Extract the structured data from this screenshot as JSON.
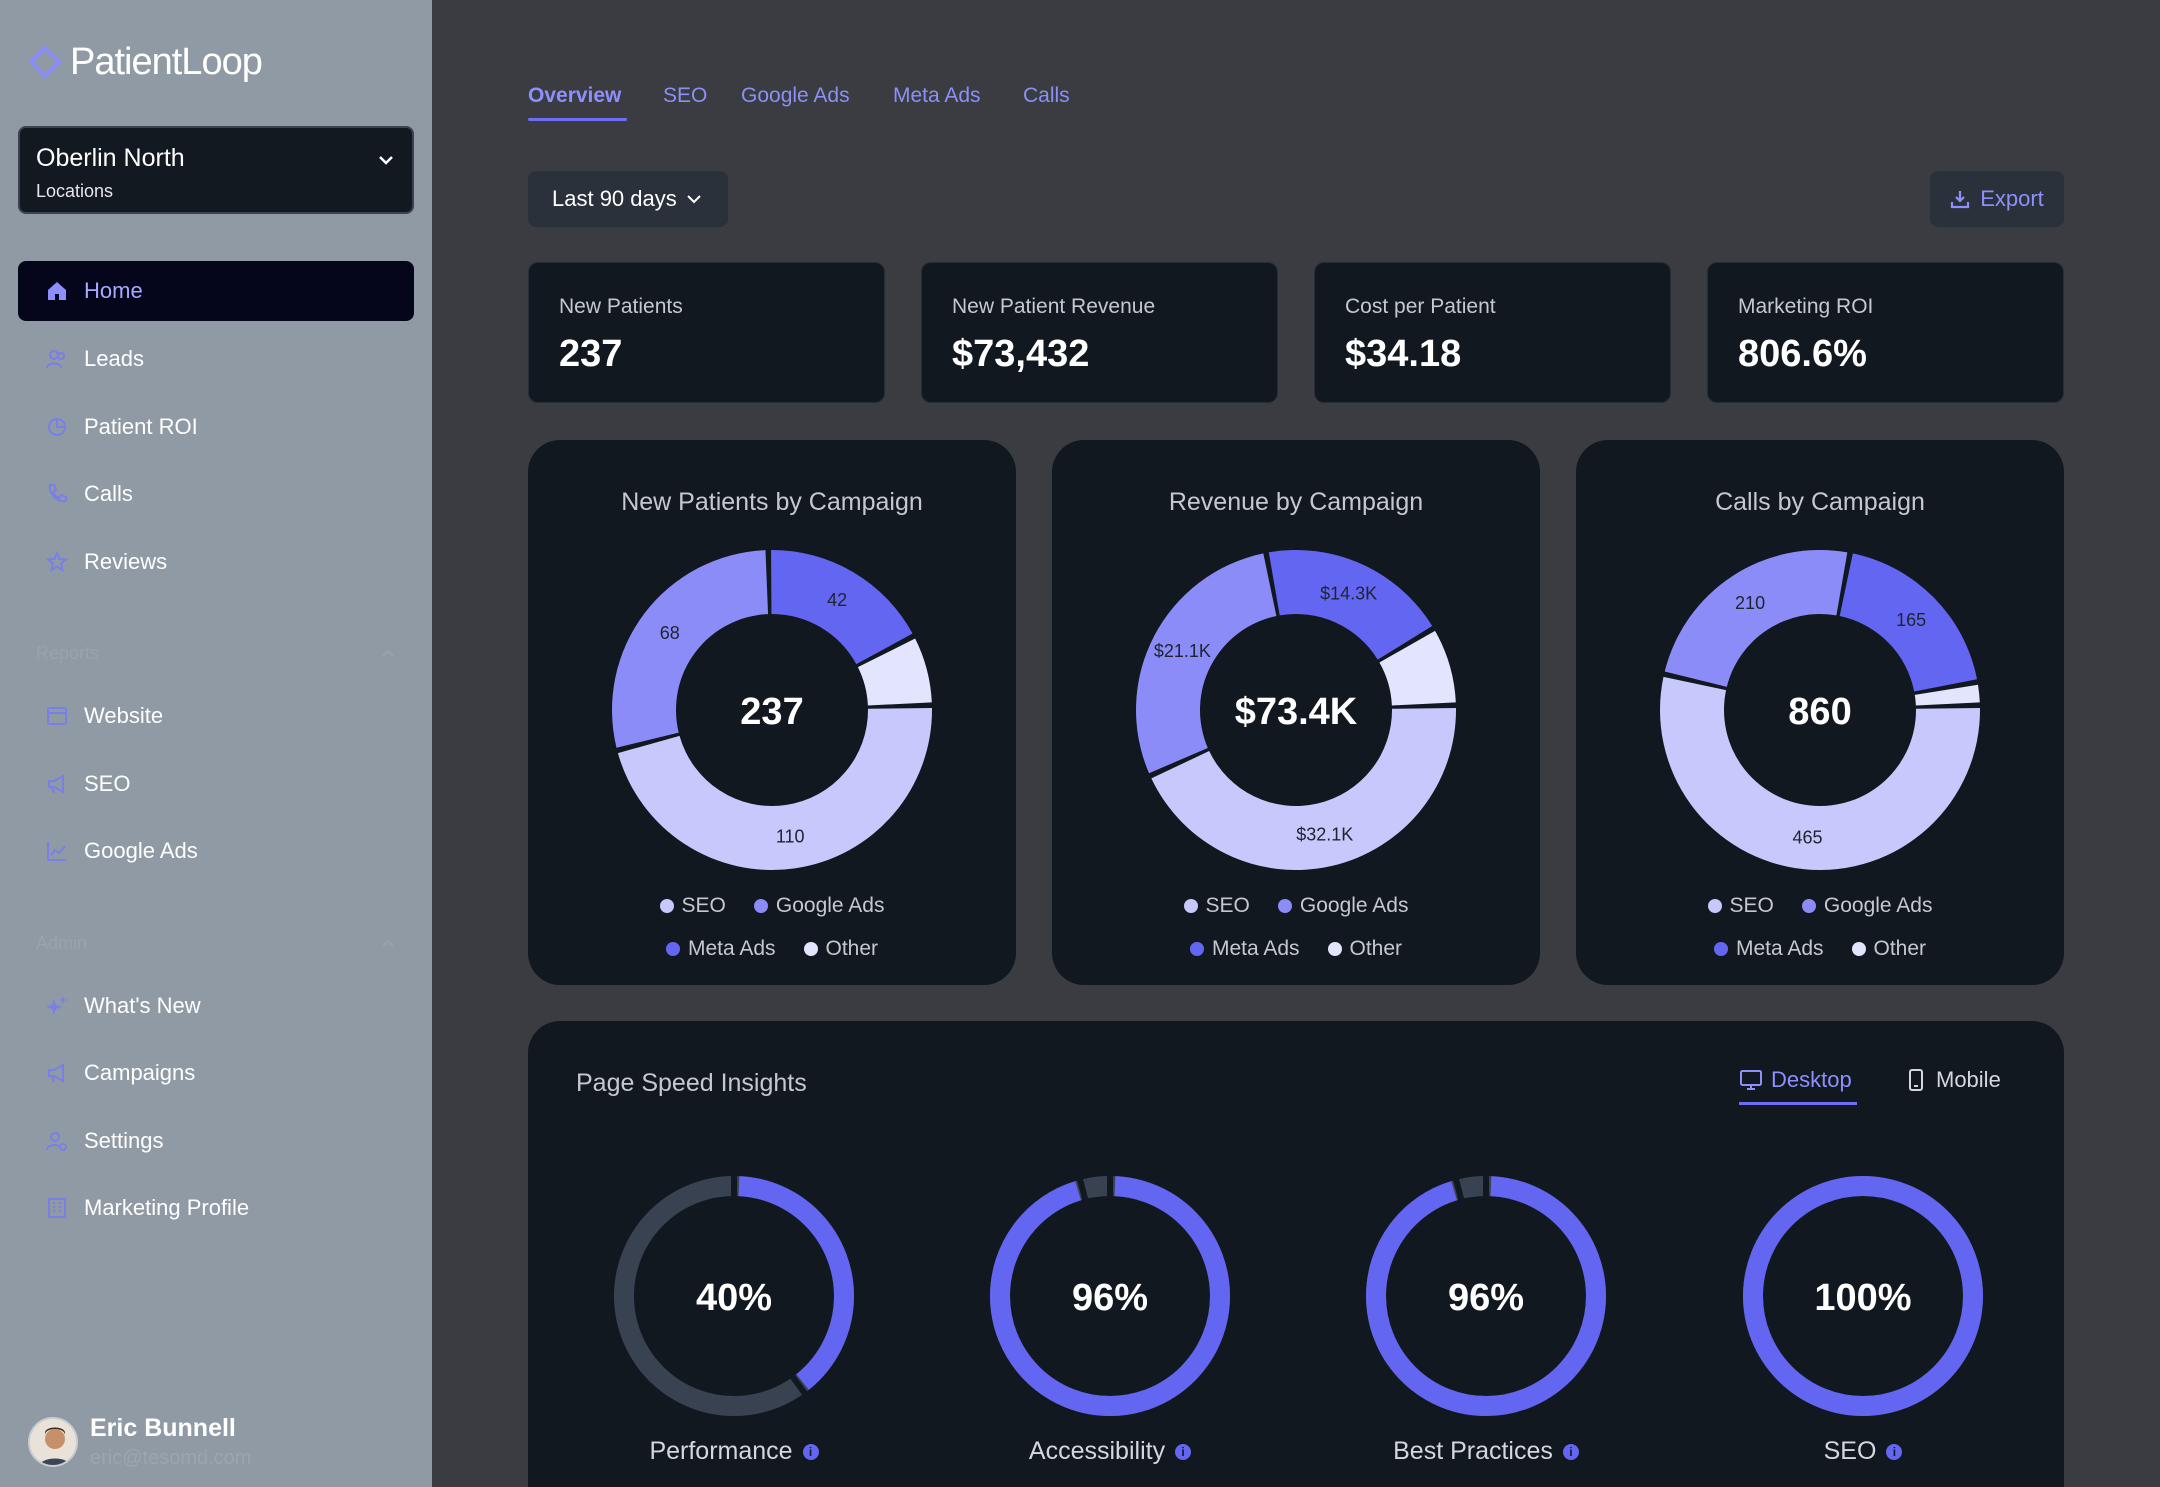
{
  "app": {
    "logo": "PatientLoop"
  },
  "location": {
    "name": "Oberlin North",
    "sub": "Locations"
  },
  "nav": {
    "home": "Home",
    "leads": "Leads",
    "patient_roi": "Patient ROI",
    "calls": "Calls",
    "reviews": "Reviews",
    "reports_header": "Reports",
    "website": "Website",
    "seo": "SEO",
    "google_ads": "Google Ads",
    "admin_header": "Admin",
    "whats_new": "What's New",
    "campaigns": "Campaigns",
    "settings": "Settings",
    "marketing_profile": "Marketing Profile"
  },
  "user": {
    "name": "Eric Bunnell",
    "email": "eric@tesomd.com"
  },
  "tabs": [
    "Overview",
    "SEO",
    "Google Ads",
    "Meta Ads",
    "Calls"
  ],
  "toolbar": {
    "range": "Last 90 days",
    "export": "Export"
  },
  "stats": [
    {
      "label": "New Patients",
      "value": "237"
    },
    {
      "label": "New Patient Revenue",
      "value": "$73,432"
    },
    {
      "label": "Cost per Patient",
      "value": "$34.18"
    },
    {
      "label": "Marketing ROI",
      "value": "806.6%"
    }
  ],
  "legend": [
    "SEO",
    "Google Ads",
    "Meta Ads",
    "Other"
  ],
  "colors": {
    "seo": "#c7c8fb",
    "google_ads": "#8b8cf8",
    "meta_ads": "#6366f1",
    "other": "#e3e4fd",
    "accent": "#8d8ffd"
  },
  "chart_data": [
    {
      "type": "pie",
      "title": "New Patients by Campaign",
      "center": "237",
      "categories": [
        "SEO",
        "Google Ads",
        "Meta Ads",
        "Other"
      ],
      "values": [
        110,
        68,
        42,
        17
      ],
      "labels": [
        "110",
        "68",
        "42",
        ""
      ]
    },
    {
      "type": "pie",
      "title": "Revenue by Campaign",
      "center": "$73.4K",
      "categories": [
        "SEO",
        "Google Ads",
        "Meta Ads",
        "Other"
      ],
      "values": [
        32.1,
        21.1,
        14.3,
        5.9
      ],
      "labels": [
        "$32.1K",
        "$21.1K",
        "$14.3K",
        ""
      ]
    },
    {
      "type": "pie",
      "title": "Calls by Campaign",
      "center": "860",
      "categories": [
        "SEO",
        "Google Ads",
        "Meta Ads",
        "Other"
      ],
      "values": [
        465,
        210,
        165,
        20
      ],
      "labels": [
        "465",
        "210",
        "165",
        ""
      ]
    }
  ],
  "psi": {
    "title": "Page Speed Insights",
    "desktop": "Desktop",
    "mobile": "Mobile",
    "gauges": [
      {
        "label": "Performance",
        "value": 40,
        "text": "40%"
      },
      {
        "label": "Accessibility",
        "value": 96,
        "text": "96%"
      },
      {
        "label": "Best Practices",
        "value": 96,
        "text": "96%"
      },
      {
        "label": "SEO",
        "value": 100,
        "text": "100%"
      }
    ]
  }
}
